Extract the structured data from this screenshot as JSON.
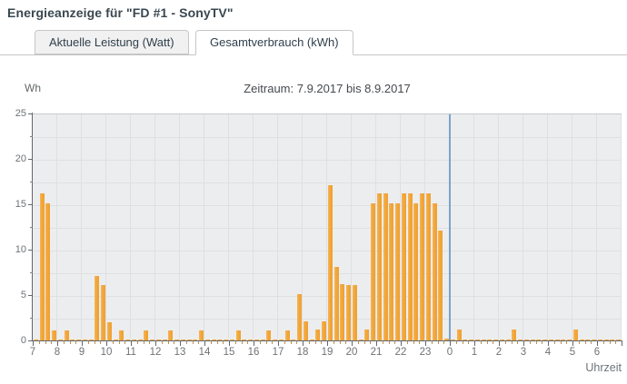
{
  "header": {
    "title": "Energieanzeige für \"FD #1 - SonyTV\""
  },
  "tabs": [
    {
      "label": "Aktuelle Leistung (Watt)",
      "active": false
    },
    {
      "label": "Gesamtverbrauch (kWh)",
      "active": true
    }
  ],
  "chart": {
    "unit_label": "Wh",
    "title": "Zeitraum: 7.9.2017 bis 8.9.2017",
    "xlabel": "Uhrzeit"
  },
  "chart_data": {
    "type": "bar",
    "title": "Zeitraum: 7.9.2017 bis 8.9.2017",
    "ylabel": "Wh",
    "xlabel": "Uhrzeit",
    "ylim": [
      0,
      25
    ],
    "y_ticks": [
      0,
      5,
      10,
      15,
      20,
      25
    ],
    "y_minor_step": 2.5,
    "grid": true,
    "slot_minutes": 15,
    "hour_labels": [
      "7",
      "8",
      "9",
      "10",
      "11",
      "12",
      "13",
      "14",
      "15",
      "16",
      "17",
      "18",
      "19",
      "20",
      "21",
      "22",
      "23",
      "0",
      "1",
      "2",
      "3",
      "4",
      "5",
      "6"
    ],
    "bar_color": "#f2a83c",
    "plot_background": "#ecedef",
    "time_marker": {
      "at_hour_label": "0",
      "slot_index": 68,
      "color": "#7ba2c9"
    },
    "values": [
      0.1,
      16.2,
      15.1,
      1.1,
      0.1,
      1.1,
      0.1,
      0.1,
      0.1,
      0.1,
      7.1,
      6.1,
      2.0,
      0.1,
      1.1,
      0.1,
      0.1,
      0.1,
      1.1,
      0.1,
      0.1,
      0.1,
      1.1,
      0.1,
      0.1,
      0.1,
      0.1,
      1.1,
      0.1,
      0.1,
      0.1,
      0.1,
      0.1,
      1.1,
      0.1,
      0.1,
      0.1,
      0.1,
      1.1,
      0.1,
      0.1,
      1.1,
      0.1,
      5.1,
      2.1,
      0.1,
      1.2,
      2.1,
      17.1,
      8.1,
      6.2,
      6.1,
      6.1,
      0.1,
      1.2,
      15.1,
      16.2,
      16.2,
      15.1,
      15.1,
      16.2,
      16.2,
      15.1,
      16.2,
      16.2,
      15.1,
      12.1,
      0.2,
      0.1,
      1.2,
      0.1,
      0.1,
      0.1,
      0.1,
      0.1,
      0.1,
      0.1,
      0.1,
      1.2,
      0.1,
      0.1,
      0.1,
      0.1,
      0.1,
      0.1,
      0.1,
      0.1,
      0.1,
      1.2,
      0.1,
      0.1,
      0.1,
      0.1,
      0.1,
      0.1,
      0.1
    ]
  }
}
